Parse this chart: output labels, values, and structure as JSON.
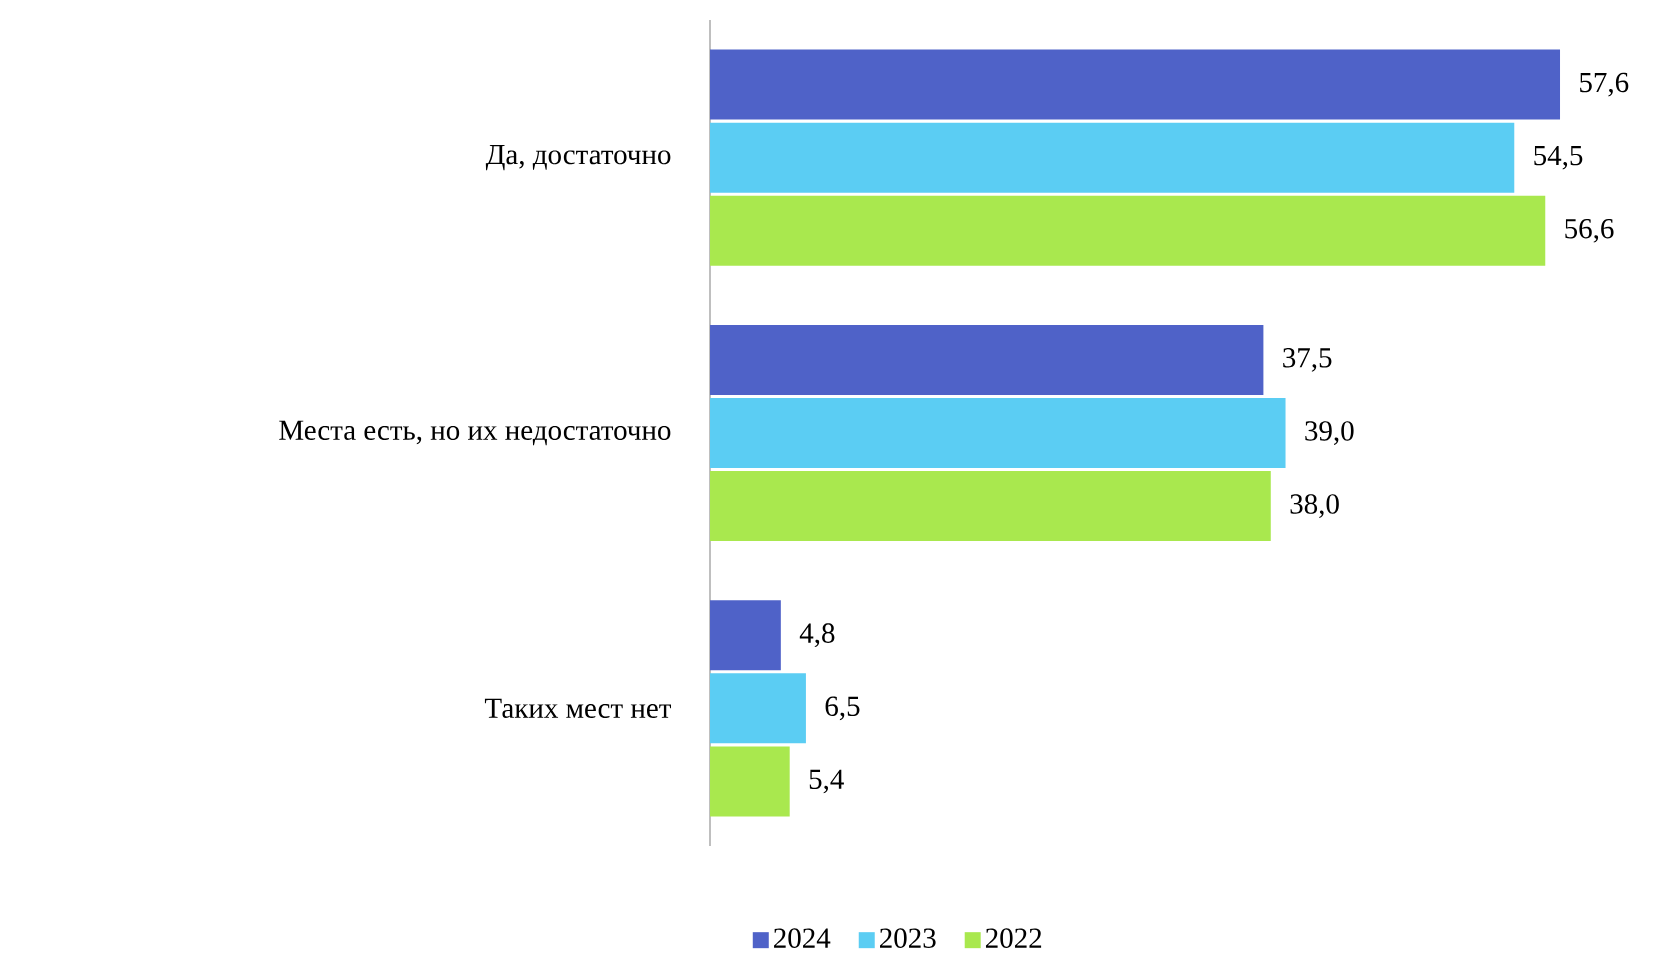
{
  "chart_data": {
    "type": "bar",
    "orientation": "horizontal",
    "categories": [
      "Да, достаточно",
      "Места есть, но их недостаточно",
      "Таких мест нет"
    ],
    "series": [
      {
        "name": "2024",
        "color": "#4f62c8",
        "values": [
          57.6,
          37.5,
          4.8
        ],
        "value_labels": [
          "57,6",
          "37,5",
          "4,8"
        ]
      },
      {
        "name": "2023",
        "color": "#5bcdf3",
        "values": [
          54.5,
          39.0,
          6.5
        ],
        "value_labels": [
          "54,5",
          "39,0",
          "6,5"
        ]
      },
      {
        "name": "2022",
        "color": "#a9e84e",
        "values": [
          56.6,
          38.0,
          5.4
        ],
        "value_labels": [
          "56,6",
          "38,0",
          "5,4"
        ]
      }
    ],
    "legend": "bottom"
  }
}
